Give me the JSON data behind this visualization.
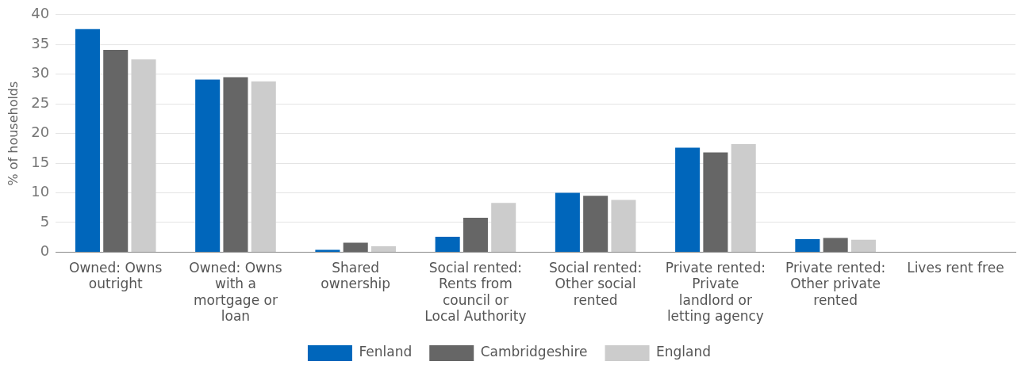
{
  "chart_data": {
    "type": "bar",
    "ylabel": "% of households",
    "categories": [
      "Owned: Owns outright",
      "Owned: Owns with a mortgage or loan",
      "Shared ownership",
      "Social rented: Rents from council or Local Authority",
      "Social rented: Other social rented",
      "Private rented: Private landlord or letting agency",
      "Private rented: Other private rented",
      "Lives rent free"
    ],
    "series": [
      {
        "name": "Fenland",
        "color": "#0066bb",
        "values": [
          37.6,
          29.1,
          0.4,
          2.6,
          10.0,
          17.6,
          2.2,
          0
        ]
      },
      {
        "name": "Cambridgeshire",
        "color": "#666666",
        "values": [
          34.1,
          29.5,
          1.6,
          5.8,
          9.5,
          16.8,
          2.4,
          0
        ]
      },
      {
        "name": "England",
        "color": "#cccccc",
        "values": [
          32.5,
          28.8,
          1.0,
          8.3,
          8.8,
          18.2,
          2.1,
          0
        ]
      }
    ],
    "ylim": [
      0,
      40
    ],
    "yticks": [
      0,
      5,
      10,
      15,
      20,
      25,
      30,
      35,
      40
    ],
    "grid": "y",
    "legend": "bottom"
  }
}
